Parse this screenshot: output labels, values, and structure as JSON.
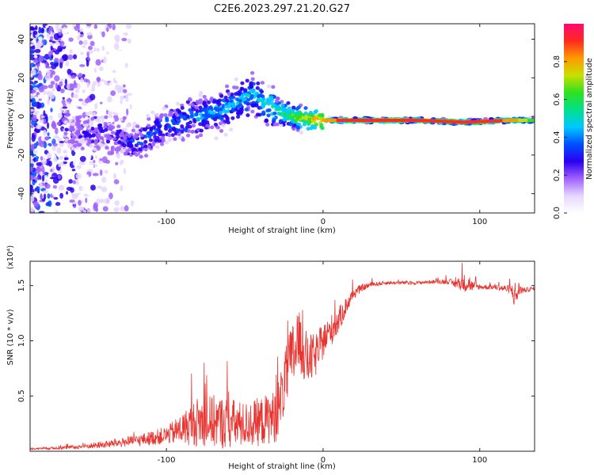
{
  "title": "C2E6.2023.297.21.20.G27",
  "colors": {
    "snr_line": "#e8332f",
    "colormap": [
      "#ffffff",
      "#e6d6ff",
      "#a060ff",
      "#2a00f0",
      "#0050ff",
      "#00c8ff",
      "#00e08a",
      "#30e020",
      "#c8e000",
      "#ff9a00",
      "#ff2a20",
      "#ff0a70"
    ]
  },
  "chart_data": [
    {
      "type": "heatmap",
      "name": "spectrogram",
      "xlabel": "Height of straight line (km)",
      "ylabel": "Frequency (Hz)",
      "xlim": [
        -187,
        135
      ],
      "ylim": [
        -50,
        48
      ],
      "x_ticks": [
        -100,
        0,
        100
      ],
      "x_tick_labels": [
        "-100",
        "0",
        "100"
      ],
      "y_ticks": [
        -40,
        -20,
        0,
        20,
        40
      ],
      "y_tick_labels": [
        "-40",
        "-20",
        "0",
        "20",
        "40"
      ],
      "colorbar": {
        "label": "Normalized spectral amplitude",
        "range": [
          0,
          1
        ],
        "ticks": [
          0.0,
          0.2,
          0.4,
          0.6,
          0.8
        ],
        "tick_labels": [
          "0.0",
          "0.2",
          "0.4",
          "0.6",
          "0.8"
        ]
      },
      "ridge": {
        "height_km": [
          -160,
          -140,
          -120,
          -100,
          -80,
          -60,
          -45,
          -30,
          -15,
          0,
          30,
          60,
          90,
          120,
          135
        ],
        "frequency_hz": [
          -9,
          -8,
          -14,
          -4,
          0,
          5,
          12,
          3,
          -1,
          -2,
          -2,
          -2,
          -3,
          -2,
          -2
        ],
        "amplitude": [
          0.2,
          0.25,
          0.3,
          0.35,
          0.4,
          0.45,
          0.45,
          0.55,
          0.7,
          0.85,
          0.9,
          0.9,
          0.92,
          0.85,
          0.6
        ]
      },
      "noise_region": {
        "height_km": [
          -187,
          -120
        ],
        "frequency_hz": [
          -50,
          48
        ],
        "amplitude": 0.1
      }
    },
    {
      "type": "line",
      "name": "snr",
      "xlabel": "Height of straight line (km)",
      "ylabel": "SNR (10 * v/v)",
      "y_multiplier_label": "(x10⁴)",
      "xlim": [
        -187,
        135
      ],
      "ylim": [
        0,
        1.72
      ],
      "x_ticks": [
        -100,
        0,
        100
      ],
      "x_tick_labels": [
        "-100",
        "0",
        "100"
      ],
      "y_ticks": [
        0.5,
        1.0,
        1.5
      ],
      "y_tick_labels": [
        "0.5",
        "1.0",
        "1.5"
      ],
      "envelope": {
        "x": [
          -187,
          -160,
          -140,
          -120,
          -100,
          -90,
          -80,
          -70,
          -60,
          -50,
          -40,
          -30,
          -25,
          -20,
          -15,
          -10,
          -5,
          0,
          5,
          10,
          15,
          20,
          25,
          30,
          40,
          50,
          60,
          70,
          80,
          85,
          90,
          93,
          95,
          100,
          110,
          120,
          123,
          125,
          128,
          135
        ],
        "base": [
          0.02,
          0.03,
          0.05,
          0.08,
          0.12,
          0.16,
          0.2,
          0.2,
          0.18,
          0.18,
          0.2,
          0.25,
          0.5,
          0.75,
          0.9,
          0.75,
          0.8,
          0.95,
          1.05,
          1.15,
          1.3,
          1.42,
          1.47,
          1.5,
          1.52,
          1.52,
          1.52,
          1.53,
          1.53,
          1.5,
          1.5,
          1.5,
          1.48,
          1.48,
          1.48,
          1.45,
          1.35,
          1.45,
          1.45,
          1.47
        ],
        "noise": [
          0.01,
          0.02,
          0.04,
          0.06,
          0.1,
          0.18,
          0.28,
          0.3,
          0.3,
          0.25,
          0.28,
          0.3,
          0.35,
          0.4,
          0.35,
          0.3,
          0.25,
          0.2,
          0.18,
          0.15,
          0.1,
          0.06,
          0.04,
          0.03,
          0.02,
          0.02,
          0.02,
          0.02,
          0.03,
          0.05,
          0.1,
          0.12,
          0.06,
          0.03,
          0.03,
          0.05,
          0.2,
          0.08,
          0.03,
          0.02
        ]
      }
    }
  ]
}
